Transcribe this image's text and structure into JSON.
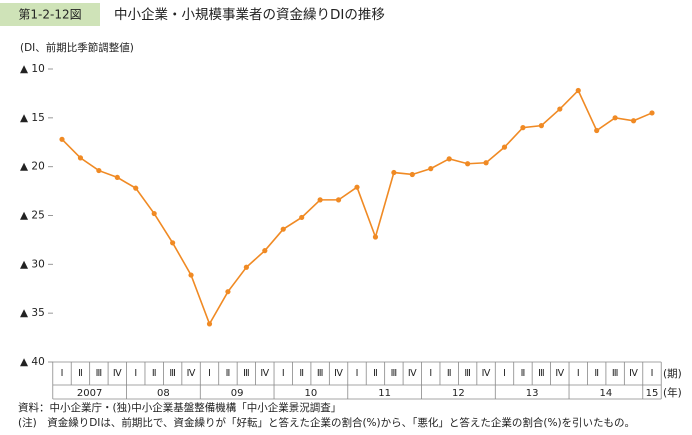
{
  "chart_data": {
    "type": "line",
    "figure_number": "第1-2-12図",
    "title": "中小企業・小規模事業者の資金繰りDIの推移",
    "y_label": "(DI、前期比季節調整値)",
    "x_unit_quarter": "(期)",
    "x_unit_year": "(年)",
    "source": "資料：中小企業庁・(独)中小企業基盤整備機構「中小企業景況調査」",
    "note": "(注)　資金繰りDIは、前期比で、資金繰りが「好転」と答えた企業の割合(%)から、「悪化」と答えた企業の割合(%)を引いたもの。",
    "categories": [
      "Ⅰ",
      "Ⅱ",
      "Ⅲ",
      "Ⅳ",
      "Ⅰ",
      "Ⅱ",
      "Ⅲ",
      "Ⅳ",
      "Ⅰ",
      "Ⅱ",
      "Ⅲ",
      "Ⅳ",
      "Ⅰ",
      "Ⅱ",
      "Ⅲ",
      "Ⅳ",
      "Ⅰ",
      "Ⅱ",
      "Ⅲ",
      "Ⅳ",
      "Ⅰ",
      "Ⅱ",
      "Ⅲ",
      "Ⅳ",
      "Ⅰ",
      "Ⅱ",
      "Ⅲ",
      "Ⅳ",
      "Ⅰ",
      "Ⅱ",
      "Ⅲ",
      "Ⅳ",
      "Ⅰ"
    ],
    "years": [
      "2007",
      "08",
      "09",
      "10",
      "11",
      "12",
      "13",
      "14",
      "15"
    ],
    "series": [
      {
        "name": "資金繰りDI",
        "color": "#f08a24",
        "values": [
          -17.2,
          -19.1,
          -20.4,
          -21.1,
          -22.2,
          -24.8,
          -27.8,
          -31.1,
          -36.1,
          -32.8,
          -30.3,
          -28.6,
          -26.4,
          -25.2,
          -23.4,
          -23.4,
          -22.1,
          -27.2,
          -20.6,
          -20.8,
          -20.2,
          -19.2,
          -19.7,
          -19.6,
          -18.0,
          -16.0,
          -15.8,
          -14.1,
          -12.2,
          -16.3,
          -15.0,
          -15.3,
          -14.5
        ]
      }
    ],
    "ylim": [
      -40,
      -10
    ],
    "yticks": [
      {
        "value": -10,
        "label": "▲ 10"
      },
      {
        "value": -15,
        "label": "▲ 15"
      },
      {
        "value": -20,
        "label": "▲ 20"
      },
      {
        "value": -25,
        "label": "▲ 25"
      },
      {
        "value": -30,
        "label": "▲ 30"
      },
      {
        "value": -35,
        "label": "▲ 35"
      },
      {
        "value": -40,
        "label": "▲ 40"
      }
    ]
  }
}
